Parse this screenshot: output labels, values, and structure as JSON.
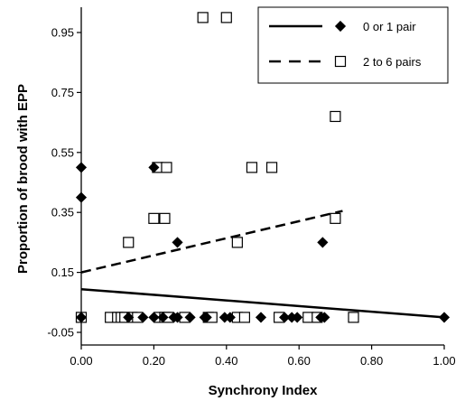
{
  "chart_data": {
    "type": "scatter",
    "xlabel": "Synchrony Index",
    "ylabel": "Proportion of brood with EPP",
    "xlim": [
      0.0,
      1.0
    ],
    "ylim": [
      -0.05,
      1.0
    ],
    "x_ticks": [
      0.0,
      0.2,
      0.4,
      0.6,
      0.8,
      1.0
    ],
    "x_tick_labels": [
      "0.00",
      "0.20",
      "0.40",
      "0.60",
      "0.80",
      "1.00"
    ],
    "y_ticks": [
      -0.05,
      0.15,
      0.35,
      0.55,
      0.75,
      0.95
    ],
    "y_tick_labels": [
      "-0.05",
      "0.15",
      "0.35",
      "0.55",
      "0.75",
      "0.95"
    ],
    "grid": false,
    "legend_position": "top-right",
    "series": [
      {
        "name": "0 or 1 pair",
        "marker": "filled-diamond",
        "line_style": "solid",
        "color": "#000000",
        "trend": {
          "x": [
            0.0,
            1.0
          ],
          "y": [
            0.094,
            0.0
          ]
        },
        "points": [
          [
            0.0,
            0.5
          ],
          [
            0.0,
            0.4
          ],
          [
            0.2,
            0.5
          ],
          [
            0.265,
            0.25
          ],
          [
            0.665,
            0.25
          ],
          [
            0.0,
            0.0
          ],
          [
            0.13,
            0.0
          ],
          [
            0.17,
            0.0
          ],
          [
            0.2,
            0.0
          ],
          [
            0.225,
            0.0
          ],
          [
            0.255,
            0.0
          ],
          [
            0.265,
            0.0
          ],
          [
            0.3,
            0.0
          ],
          [
            0.34,
            0.0
          ],
          [
            0.345,
            0.0
          ],
          [
            0.395,
            0.0
          ],
          [
            0.41,
            0.0
          ],
          [
            0.495,
            0.0
          ],
          [
            0.56,
            0.0
          ],
          [
            0.58,
            0.0
          ],
          [
            0.595,
            0.0
          ],
          [
            0.66,
            0.0
          ],
          [
            0.67,
            0.0
          ],
          [
            1.0,
            0.0
          ]
        ]
      },
      {
        "name": "2 to 6 pairs",
        "marker": "open-square",
        "line_style": "dashed",
        "color": "#000000",
        "trend": {
          "x": [
            0.0,
            0.72
          ],
          "y": [
            0.15,
            0.355
          ]
        },
        "points": [
          [
            0.335,
            1.0
          ],
          [
            0.4,
            1.0
          ],
          [
            0.7,
            0.67
          ],
          [
            0.21,
            0.5
          ],
          [
            0.235,
            0.5
          ],
          [
            0.47,
            0.5
          ],
          [
            0.525,
            0.5
          ],
          [
            0.2,
            0.33
          ],
          [
            0.23,
            0.33
          ],
          [
            0.7,
            0.33
          ],
          [
            0.13,
            0.25
          ],
          [
            0.43,
            0.25
          ],
          [
            0.0,
            0.0
          ],
          [
            0.08,
            0.0
          ],
          [
            0.1,
            0.0
          ],
          [
            0.11,
            0.0
          ],
          [
            0.12,
            0.0
          ],
          [
            0.14,
            0.0
          ],
          [
            0.155,
            0.0
          ],
          [
            0.215,
            0.0
          ],
          [
            0.23,
            0.0
          ],
          [
            0.24,
            0.0
          ],
          [
            0.285,
            0.0
          ],
          [
            0.35,
            0.0
          ],
          [
            0.36,
            0.0
          ],
          [
            0.43,
            0.0
          ],
          [
            0.45,
            0.0
          ],
          [
            0.545,
            0.0
          ],
          [
            0.625,
            0.0
          ],
          [
            0.65,
            0.0
          ],
          [
            0.75,
            0.0
          ]
        ]
      }
    ]
  }
}
